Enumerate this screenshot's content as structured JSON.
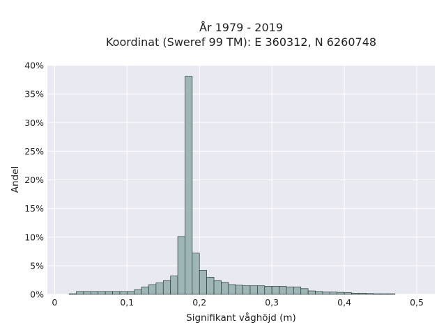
{
  "chart_data": {
    "type": "bar",
    "title": "År 1979 - 2019",
    "subtitle": "Koordinat (Sweref 99 TM): E 360312, N 6260748",
    "xlabel": "Signifikant våghöjd (m)",
    "ylabel": "Andel",
    "xlim": [
      -0.01,
      0.525
    ],
    "ylim": [
      0,
      40
    ],
    "x_ticks": [
      0,
      0.1,
      0.2,
      0.3,
      0.4,
      0.5
    ],
    "x_tick_labels": [
      "0",
      "0,1",
      "0,2",
      "0,3",
      "0,4",
      "0,5"
    ],
    "y_ticks": [
      0,
      5,
      10,
      15,
      20,
      25,
      30,
      35,
      40
    ],
    "y_tick_labels": [
      "0%",
      "5%",
      "10%",
      "15%",
      "20%",
      "25%",
      "30%",
      "35%",
      "40%"
    ],
    "grid": true,
    "bin_width": 0.01,
    "bin_starts": [
      0.02,
      0.03,
      0.04,
      0.05,
      0.06,
      0.07,
      0.08,
      0.09,
      0.1,
      0.11,
      0.12,
      0.13,
      0.14,
      0.15,
      0.16,
      0.17,
      0.18,
      0.19,
      0.2,
      0.21,
      0.22,
      0.23,
      0.24,
      0.25,
      0.26,
      0.27,
      0.28,
      0.29,
      0.3,
      0.31,
      0.32,
      0.33,
      0.34,
      0.35,
      0.36,
      0.37,
      0.38,
      0.39,
      0.4,
      0.41,
      0.42,
      0.43,
      0.44,
      0.45,
      0.46
    ],
    "values": [
      0.1,
      0.5,
      0.5,
      0.5,
      0.5,
      0.5,
      0.5,
      0.5,
      0.5,
      0.8,
      1.3,
      1.7,
      2.0,
      2.4,
      3.2,
      10.1,
      38.1,
      7.2,
      4.2,
      3.0,
      2.4,
      2.1,
      1.7,
      1.6,
      1.5,
      1.5,
      1.5,
      1.4,
      1.4,
      1.4,
      1.3,
      1.3,
      1.0,
      0.6,
      0.5,
      0.4,
      0.4,
      0.35,
      0.3,
      0.2,
      0.2,
      0.15,
      0.1,
      0.1,
      0.1
    ]
  },
  "colors": {
    "background": "#ffffff",
    "plot_background": "#e9e9f1",
    "grid": "#ffffff",
    "bar_fill": "#9fb6b6",
    "bar_edge": "#2b3a3a",
    "text": "#222222"
  }
}
